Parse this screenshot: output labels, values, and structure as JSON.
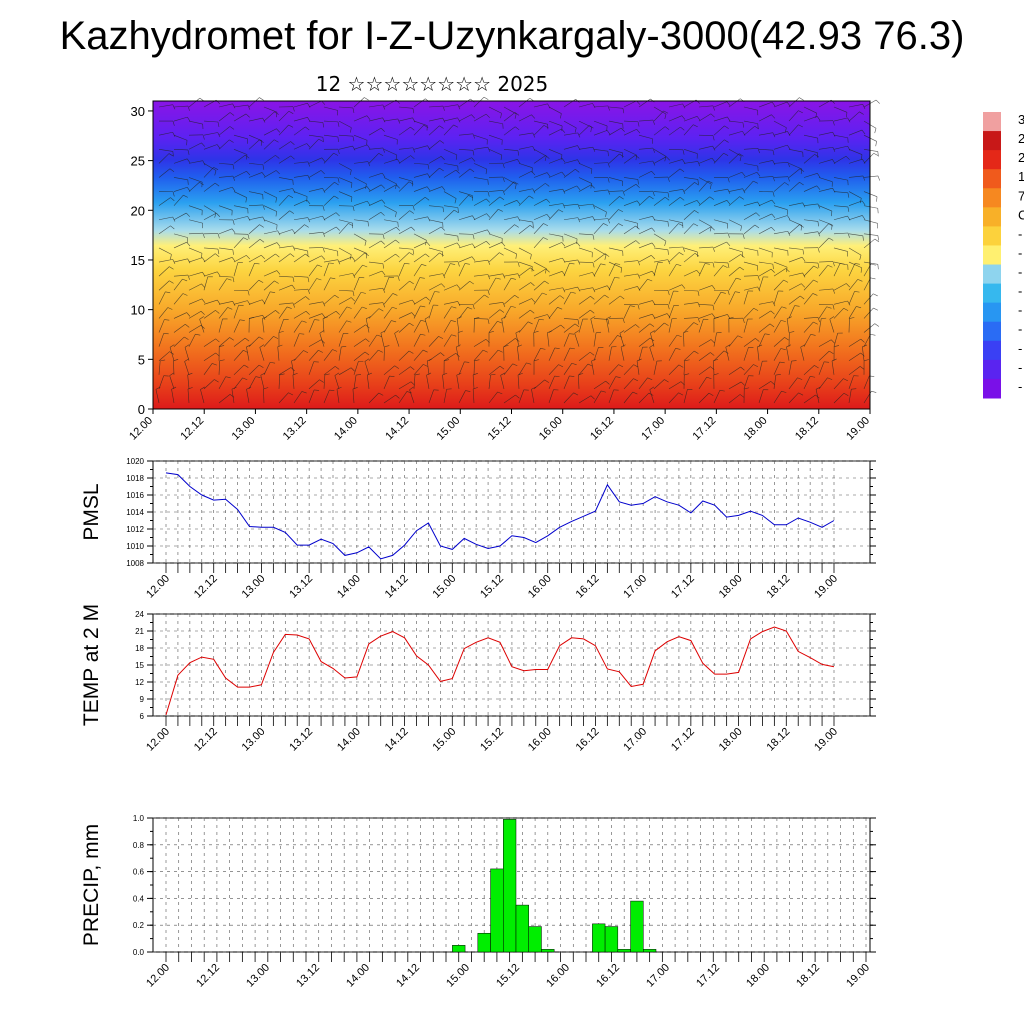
{
  "title": "Kazhydromet for I-Z-Uzynkargaly-3000(42.93 76.3)",
  "subtitle": "12 ☆☆☆☆☆☆☆☆ 2025",
  "time_labels": [
    "12.00",
    "12.12",
    "13.00",
    "13.12",
    "14.00",
    "14.12",
    "15.00",
    "15.12",
    "16.00",
    "16.12",
    "17.00",
    "17.12",
    "18.00",
    "18.12",
    "19.00"
  ],
  "colorbar": {
    "colors": [
      "#7a10e8",
      "#5a24f0",
      "#3a40f4",
      "#2a6cf4",
      "#2896f2",
      "#36b8ee",
      "#8ed4ee",
      "#fff070",
      "#fcd23c",
      "#f8b028",
      "#f68820",
      "#f05a1c",
      "#e42818",
      "#c81818",
      "#f0a0a0"
    ],
    "tick_labels_visible": [
      "3",
      "2",
      "2",
      "1",
      "7",
      "C",
      "-",
      "-",
      "-",
      "-",
      "-",
      "-",
      "-",
      "-",
      "-"
    ]
  },
  "chart_data": [
    {
      "type": "heatmap",
      "ylim": [
        0,
        31
      ],
      "yticks": [
        0,
        5,
        10,
        15,
        20,
        25,
        30
      ],
      "colorscale": "purple (top, cold) to red (bottom, warm)",
      "overlay": "wind barbs"
    },
    {
      "type": "line",
      "ylabel": "PMSL",
      "ylim": [
        1008,
        1020
      ],
      "yticks": [
        1008,
        1010,
        1012,
        1014,
        1016,
        1018,
        1020
      ],
      "color": "#0000cc",
      "values": [
        1018.6,
        1018.4,
        1017.0,
        1016.0,
        1015.4,
        1015.5,
        1014.3,
        1012.3,
        1012.2,
        1012.2,
        1011.6,
        1010.1,
        1010.1,
        1010.8,
        1010.3,
        1008.9,
        1009.2,
        1009.9,
        1008.5,
        1008.9,
        1010.1,
        1011.8,
        1012.7,
        1010.0,
        1009.6,
        1010.9,
        1010.2,
        1009.7,
        1010.0,
        1011.2,
        1011.0,
        1010.4,
        1011.2,
        1012.2,
        1012.9,
        1013.5,
        1014.1,
        1017.2,
        1015.2,
        1014.8,
        1015.0,
        1015.8,
        1015.2,
        1014.8,
        1013.9,
        1015.3,
        1014.8,
        1013.4,
        1013.6,
        1014.1,
        1013.6,
        1012.5,
        1012.5,
        1013.3,
        1012.8,
        1012.2,
        1013.0
      ]
    },
    {
      "type": "line",
      "ylabel": "TEMP at 2 M",
      "ylim": [
        6,
        24
      ],
      "yticks": [
        6,
        9,
        12,
        15,
        18,
        21,
        24
      ],
      "color": "#dd0000",
      "values": [
        6.2,
        13.2,
        15.4,
        16.4,
        16.0,
        12.7,
        11.1,
        11.1,
        11.5,
        17.2,
        20.4,
        20.3,
        19.6,
        15.6,
        14.4,
        12.7,
        12.9,
        18.7,
        20.1,
        20.9,
        19.8,
        16.6,
        15.0,
        12.1,
        12.6,
        17.9,
        19.0,
        19.8,
        19.0,
        14.7,
        14.0,
        14.2,
        14.2,
        18.4,
        19.8,
        19.6,
        18.4,
        14.3,
        13.8,
        11.2,
        11.6,
        17.5,
        19.1,
        20.0,
        19.3,
        15.3,
        13.4,
        13.4,
        13.7,
        19.6,
        20.9,
        21.7,
        21.0,
        17.4,
        16.3,
        15.1,
        14.7
      ]
    },
    {
      "type": "bar",
      "ylabel": "PRECIP, mm",
      "ylim": [
        0,
        1.0
      ],
      "yticks": [
        "0.0",
        "0.2",
        "0.4",
        "0.6",
        "0.8",
        "1.0"
      ],
      "color": "#00ee00",
      "values": [
        0,
        0,
        0,
        0,
        0,
        0,
        0,
        0,
        0,
        0,
        0,
        0,
        0,
        0,
        0,
        0,
        0,
        0,
        0,
        0,
        0,
        0,
        0,
        0.05,
        0,
        0.14,
        0.62,
        0.99,
        0.35,
        0.19,
        0.02,
        0,
        0,
        0,
        0.21,
        0.19,
        0.02,
        0.38,
        0.02,
        0,
        0,
        0,
        0,
        0,
        0,
        0,
        0,
        0,
        0,
        0,
        0,
        0,
        0,
        0,
        0,
        0
      ]
    }
  ]
}
